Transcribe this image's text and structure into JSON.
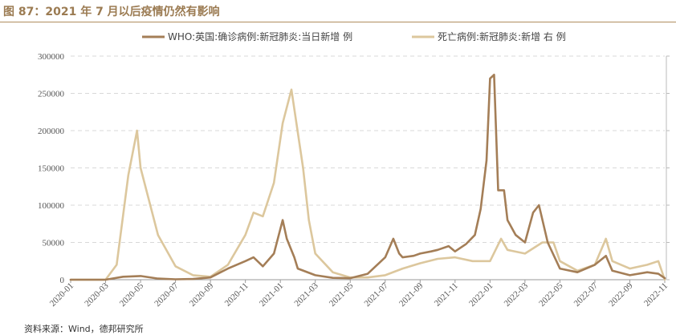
{
  "figure": {
    "title": "图 87：2021 年 7 月以后疫情仍然有影响",
    "source": "资料来源：Wind，德邦研究所"
  },
  "colors": {
    "title": "#9b7b52",
    "cases_series": "#a47e57",
    "deaths_series": "#dcc79d",
    "grid": "#d8d8d8"
  },
  "chart_data": {
    "type": "line",
    "title": "",
    "xlabel": "",
    "ylabel": "",
    "ylim_left": [
      0,
      300000
    ],
    "yticks_left": [
      0,
      50000,
      100000,
      150000,
      200000,
      250000,
      300000
    ],
    "ytick_labels_left": [
      "0",
      "50000",
      "100000",
      "150000",
      "200000",
      "250000",
      "300000"
    ],
    "xtick_labels": [
      "2020-01",
      "2020-03",
      "2020-05",
      "2020-07",
      "2020-09",
      "2020-11",
      "2021-01",
      "2021-03",
      "2021-05",
      "2021-07",
      "2021-09",
      "2021-11",
      "2022-01",
      "2022-03",
      "2022-05",
      "2022-07",
      "2022-09",
      "2022-11"
    ],
    "x_range": [
      "2020-01",
      "2022-11"
    ],
    "grid": "horizontal dashed",
    "legend_position": "top-center",
    "series": [
      {
        "name": "WHO:英国:确诊病例:新冠肺炎:当日新增",
        "legend_suffix": "例",
        "axis": "left",
        "color": "#a47e57",
        "x": [
          "2020-01",
          "2020-03",
          "2020-04",
          "2020-05",
          "2020-06",
          "2020-07",
          "2020-08",
          "2020-09",
          "2020-10",
          "2020-11",
          "2020-11-15",
          "2020-12",
          "2020-12-20",
          "2021-01-05",
          "2021-01-12",
          "2021-01-25",
          "2021-02",
          "2021-03",
          "2021-04",
          "2021-05",
          "2021-06",
          "2021-07-01",
          "2021-07-15",
          "2021-07-25",
          "2021-08",
          "2021-08-20",
          "2021-09",
          "2021-09-20",
          "2021-10",
          "2021-10-20",
          "2021-11",
          "2021-11-20",
          "2021-12-05",
          "2021-12-15",
          "2021-12-25",
          "2022-01-01",
          "2022-01-08",
          "2022-01-15",
          "2022-01-25",
          "2022-02",
          "2022-02-15",
          "2022-03",
          "2022-03-15",
          "2022-03-25",
          "2022-04-10",
          "2022-05",
          "2022-06",
          "2022-07",
          "2022-07-20",
          "2022-08",
          "2022-09",
          "2022-10",
          "2022-10-20",
          "2022-11"
        ],
        "values": [
          0,
          0,
          4000,
          5000,
          1500,
          500,
          1000,
          3000,
          15000,
          25000,
          30000,
          18000,
          35000,
          80000,
          55000,
          30000,
          15000,
          6000,
          2500,
          2000,
          8000,
          30000,
          55000,
          35000,
          30000,
          32000,
          35000,
          38000,
          40000,
          45000,
          38000,
          48000,
          60000,
          95000,
          160000,
          270000,
          275000,
          120000,
          120000,
          80000,
          60000,
          50000,
          90000,
          100000,
          50000,
          15000,
          10000,
          20000,
          32000,
          12000,
          6000,
          10000,
          8000,
          2000
        ]
      },
      {
        "name": "死亡病例:新冠肺炎:新增",
        "legend_suffix": "右 例",
        "axis": "right",
        "color": "#dcc79d",
        "x": [
          "2020-01",
          "2020-03",
          "2020-03-20",
          "2020-04-10",
          "2020-04-25",
          "2020-05",
          "2020-06",
          "2020-07",
          "2020-08",
          "2020-09",
          "2020-10",
          "2020-11",
          "2020-11-15",
          "2020-12",
          "2020-12-20",
          "2021-01-05",
          "2021-01-20",
          "2021-02-10",
          "2021-02-20",
          "2021-03",
          "2021-04",
          "2021-05",
          "2021-06",
          "2021-07",
          "2021-08",
          "2021-09",
          "2021-10",
          "2021-11",
          "2021-12",
          "2022-01",
          "2022-01-20",
          "2022-02",
          "2022-03",
          "2022-04",
          "2022-04-20",
          "2022-05",
          "2022-06",
          "2022-07",
          "2022-07-20",
          "2022-08",
          "2022-09",
          "2022-10",
          "2022-10-20",
          "2022-11"
        ],
        "values_scaled_to_left_axis": [
          0,
          0,
          20000,
          140000,
          200000,
          150000,
          60000,
          18000,
          6000,
          4000,
          20000,
          60000,
          90000,
          85000,
          130000,
          210000,
          255000,
          150000,
          80000,
          35000,
          10000,
          3000,
          3000,
          6000,
          15000,
          22000,
          28000,
          30000,
          25000,
          25000,
          55000,
          40000,
          35000,
          50000,
          50000,
          25000,
          12000,
          20000,
          55000,
          25000,
          15000,
          20000,
          25000,
          0
        ]
      }
    ]
  }
}
